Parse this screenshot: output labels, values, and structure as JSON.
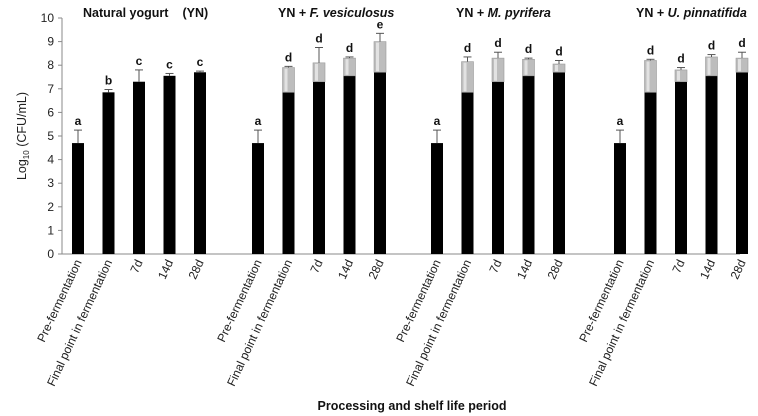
{
  "chart_data": {
    "type": "bar",
    "title": "",
    "xlabel": "Processing and shelf life period",
    "ylabel_prefix": "Log",
    "ylabel_sub": "10",
    "ylabel_suffix": " (CFU/mL)",
    "ylim": [
      0,
      10
    ],
    "yticks": [
      0,
      1,
      2,
      3,
      4,
      5,
      6,
      7,
      8,
      9,
      10
    ],
    "colors": {
      "base": "#000000",
      "extra": "#bdbdbd",
      "extra_light": "#e2e2e2"
    },
    "groups": [
      {
        "title": "Natural yogurt",
        "suffix": "(YN)",
        "title_italic": "",
        "categories": [
          "Pre-fermentation",
          "Final point in fermentation",
          "7d",
          "14d",
          "28d"
        ],
        "base": [
          4.7,
          6.85,
          7.3,
          7.55,
          7.7
        ],
        "total": [
          4.7,
          6.85,
          7.3,
          7.55,
          7.7
        ],
        "error": [
          0.55,
          0.12,
          0.5,
          0.1,
          0.05
        ],
        "letters": [
          "a",
          "b",
          "c",
          "c",
          "c"
        ]
      },
      {
        "title": "YN + ",
        "suffix": "",
        "title_italic": "F. vesiculosus",
        "categories": [
          "Pre-fermentation",
          "Final point in fermentation",
          "7d",
          "14d",
          "28d"
        ],
        "base": [
          4.7,
          6.85,
          7.3,
          7.55,
          7.7
        ],
        "total": [
          4.7,
          7.9,
          8.1,
          8.3,
          9.0
        ],
        "error": [
          0.55,
          0.05,
          0.65,
          0.05,
          0.35
        ],
        "letters": [
          "a",
          "d",
          "d",
          "d",
          "e"
        ]
      },
      {
        "title": "YN + ",
        "suffix": "",
        "title_italic": "M. pyrifera",
        "categories": [
          "Pre-fermentation",
          "Final point in fermentation",
          "7d",
          "14d",
          "28d"
        ],
        "base": [
          4.7,
          6.85,
          7.3,
          7.55,
          7.7
        ],
        "total": [
          4.7,
          8.15,
          8.3,
          8.25,
          8.05
        ],
        "error": [
          0.55,
          0.2,
          0.25,
          0.05,
          0.15
        ],
        "letters": [
          "a",
          "d",
          "d",
          "d",
          "d"
        ]
      },
      {
        "title": "YN + ",
        "suffix": "",
        "title_italic": "U. pinnatifida",
        "categories": [
          "Pre-fermentation",
          "Final point in fermentation",
          "7d",
          "14d",
          "28d"
        ],
        "base": [
          4.7,
          6.85,
          7.3,
          7.55,
          7.7
        ],
        "total": [
          4.7,
          8.2,
          7.8,
          8.35,
          8.3
        ],
        "error": [
          0.55,
          0.05,
          0.1,
          0.1,
          0.25
        ],
        "letters": [
          "a",
          "d",
          "d",
          "d",
          "d"
        ]
      }
    ]
  }
}
